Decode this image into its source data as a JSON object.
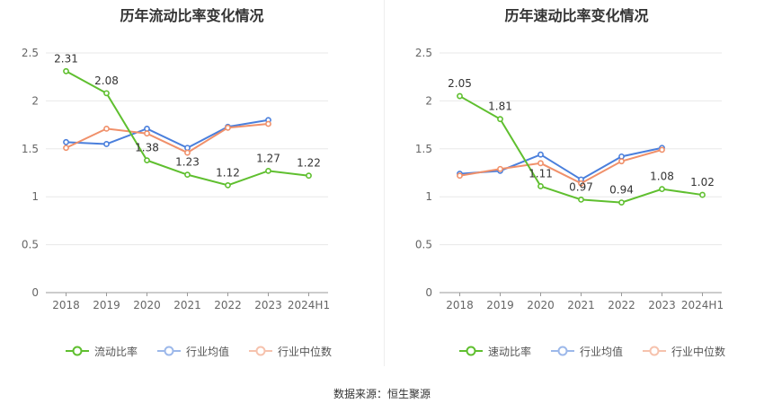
{
  "colors": {
    "company": "#5fbf2f",
    "industry_avg": "#4a7fdc",
    "industry_median": "#f0906a",
    "grid": "#e8e8e8",
    "axis": "#666666",
    "label": "#333333"
  },
  "source": "数据来源：恒生聚源",
  "chart_data": [
    {
      "type": "line",
      "title": "历年流动比率变化情况",
      "categories": [
        "2018",
        "2019",
        "2020",
        "2021",
        "2022",
        "2023",
        "2024H1"
      ],
      "ylim": [
        0,
        2.5
      ],
      "yticks": [
        "0",
        "0.5",
        "1",
        "1.5",
        "2",
        "2.5"
      ],
      "ytick_values": [
        0,
        0.5,
        1,
        1.5,
        2,
        2.5
      ],
      "series": [
        {
          "name": "流动比率",
          "key": "company",
          "values": [
            2.31,
            2.08,
            1.38,
            1.23,
            1.12,
            1.27,
            1.22
          ],
          "labels": [
            "2.31",
            "2.08",
            "1.38",
            "1.23",
            "1.12",
            "1.27",
            "1.22"
          ]
        },
        {
          "name": "行业均值",
          "key": "industry_avg",
          "values": [
            1.57,
            1.55,
            1.71,
            1.51,
            1.73,
            1.8,
            null
          ]
        },
        {
          "name": "行业中位数",
          "key": "industry_median",
          "values": [
            1.51,
            1.71,
            1.66,
            1.46,
            1.72,
            1.76,
            null
          ]
        }
      ]
    },
    {
      "type": "line",
      "title": "历年速动比率变化情况",
      "categories": [
        "2018",
        "2019",
        "2020",
        "2021",
        "2022",
        "2023",
        "2024H1"
      ],
      "ylim": [
        0,
        2.5
      ],
      "yticks": [
        "0",
        "0.5",
        "1",
        "1.5",
        "2",
        "2.5"
      ],
      "ytick_values": [
        0,
        0.5,
        1,
        1.5,
        2,
        2.5
      ],
      "series": [
        {
          "name": "速动比率",
          "key": "company",
          "values": [
            2.05,
            1.81,
            1.11,
            0.97,
            0.94,
            1.08,
            1.02
          ],
          "labels": [
            "2.05",
            "1.81",
            "1.11",
            "0.97",
            "0.94",
            "1.08",
            "1.02"
          ]
        },
        {
          "name": "行业均值",
          "key": "industry_avg",
          "values": [
            1.24,
            1.27,
            1.44,
            1.18,
            1.42,
            1.51,
            null
          ]
        },
        {
          "name": "行业中位数",
          "key": "industry_median",
          "values": [
            1.22,
            1.29,
            1.35,
            1.14,
            1.37,
            1.49,
            null
          ]
        }
      ]
    }
  ]
}
